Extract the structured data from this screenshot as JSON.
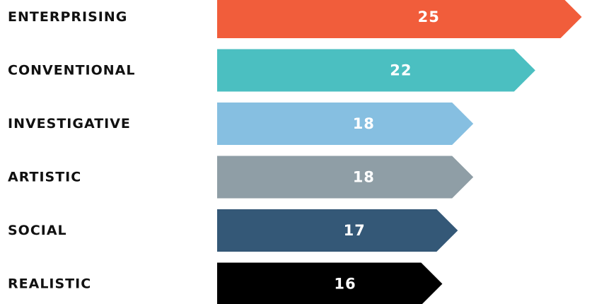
{
  "chart_data": {
    "type": "bar",
    "orientation": "horizontal",
    "categories": [
      "ENTERPRISING",
      "CONVENTIONAL",
      "INVESTIGATIVE",
      "ARTISTIC",
      "SOCIAL",
      "REALISTIC"
    ],
    "values": [
      25,
      22,
      18,
      18,
      17,
      16
    ],
    "colors": [
      "#f15d3b",
      "#4bbfc1",
      "#86bfe1",
      "#8f9ea6",
      "#345877",
      "#000000"
    ],
    "title": "",
    "xlabel": "",
    "ylabel": "",
    "grid": false,
    "legend": "none"
  }
}
